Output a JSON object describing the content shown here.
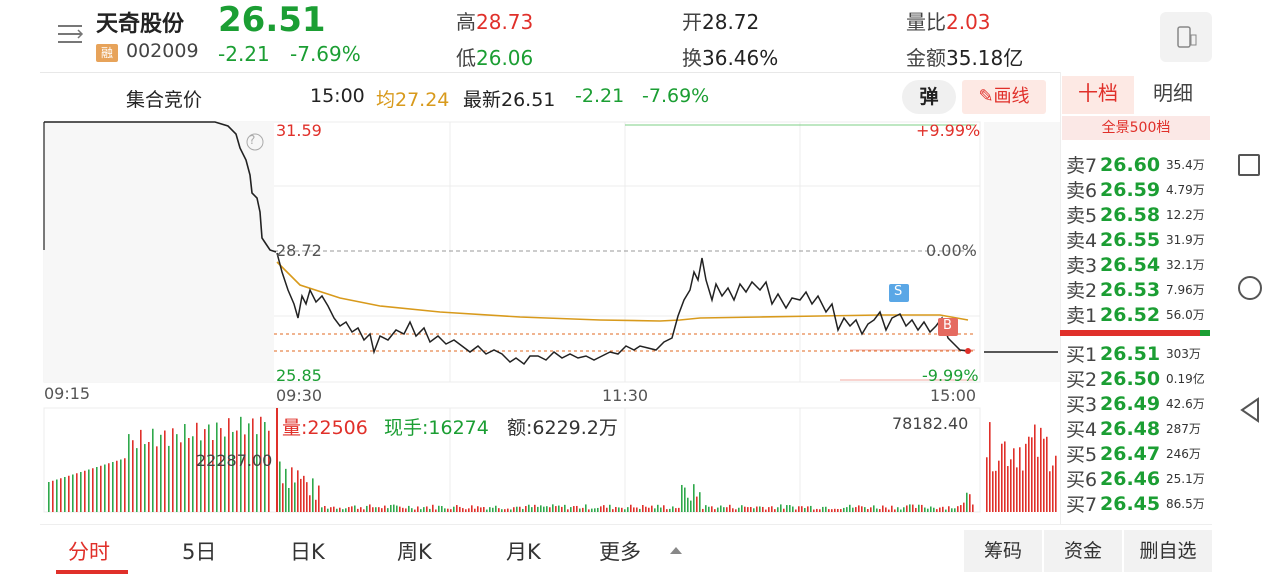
{
  "header": {
    "stock_name": "天奇股份",
    "badge": "融",
    "stock_code": "002009",
    "price": "26.51",
    "change": "-2.21",
    "change_pct": "-7.69%",
    "high_label": "高",
    "high_value": "28.73",
    "low_label": "低",
    "low_value": "26.06",
    "open_label": "开",
    "open_value": "28.72",
    "turnover_label": "换",
    "turnover_value": "36.46%",
    "vol_ratio_label": "量比",
    "vol_ratio_value": "2.03",
    "amount_label": "金额",
    "amount_value": "35.18亿"
  },
  "info_bar": {
    "auction": "集合竞价",
    "time": "15:00",
    "avg": "均27.24",
    "latest": "最新26.51",
    "change": "-2.21",
    "change_pct": "-7.69%",
    "tan": "弹",
    "draw": "画线"
  },
  "chart": {
    "left_top": "31.59",
    "left_mid": "28.72",
    "left_bottom": "25.85",
    "right_top": "+9.99%",
    "right_mid": "0.00%",
    "right_bottom": "-9.99%",
    "time_0915": "09:15",
    "time_0930": "09:30",
    "time_1130": "11:30",
    "time_1500": "15:00",
    "help": "?",
    "marker_s": "S",
    "marker_b": "B",
    "vol_label": "量:22506",
    "hand_label": "现手:16274",
    "amt_label": "额:6229.2万",
    "vol_max": "78182.40",
    "auction_vol": "22287.00"
  },
  "right_panel": {
    "tab_active": "十档",
    "tab_other": "明细",
    "full_view": "全景500档",
    "sells": [
      {
        "side": "卖7",
        "price": "26.60",
        "vol": "35.4万"
      },
      {
        "side": "卖6",
        "price": "26.59",
        "vol": "4.79万"
      },
      {
        "side": "卖5",
        "price": "26.58",
        "vol": "12.2万"
      },
      {
        "side": "卖4",
        "price": "26.55",
        "vol": "31.9万"
      },
      {
        "side": "卖3",
        "price": "26.54",
        "vol": "32.1万"
      },
      {
        "side": "卖2",
        "price": "26.53",
        "vol": "7.96万"
      },
      {
        "side": "卖1",
        "price": "26.52",
        "vol": "56.0万"
      }
    ],
    "buys": [
      {
        "side": "买1",
        "price": "26.51",
        "vol": "303万"
      },
      {
        "side": "买2",
        "price": "26.50",
        "vol": "0.19亿"
      },
      {
        "side": "买3",
        "price": "26.49",
        "vol": "42.6万"
      },
      {
        "side": "买4",
        "price": "26.48",
        "vol": "287万"
      },
      {
        "side": "买5",
        "price": "26.47",
        "vol": "246万"
      },
      {
        "side": "买6",
        "price": "26.46",
        "vol": "25.1万"
      },
      {
        "side": "买7",
        "price": "26.45",
        "vol": "86.5万"
      }
    ]
  },
  "bottom_tabs": [
    "分时",
    "5日",
    "日K",
    "周K",
    "月K",
    "更多"
  ],
  "bottom_buttons": [
    "筹码",
    "资金",
    "删自选"
  ],
  "colors": {
    "up": "#e0302a",
    "down": "#1b9e33",
    "avg": "#d89a1c"
  }
}
